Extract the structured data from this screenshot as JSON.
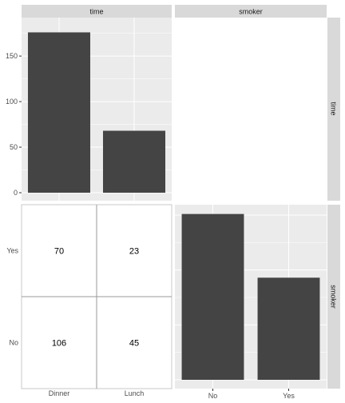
{
  "chart_data": [
    {
      "type": "bar",
      "panel": "time-by-time",
      "facet_col": "time",
      "facet_row": "time",
      "categories": [
        "Dinner",
        "Lunch"
      ],
      "values": [
        176,
        68
      ],
      "ylim": [
        0,
        183
      ],
      "yticks": [
        0,
        50,
        100,
        150
      ]
    },
    {
      "type": "bar",
      "panel": "smoker-by-smoker",
      "facet_col": "smoker",
      "facet_row": "smoker",
      "categories": [
        "No",
        "Yes"
      ],
      "values": [
        151,
        93
      ],
      "ylim": [
        0,
        158
      ]
    },
    {
      "type": "table",
      "panel": "time-by-smoker",
      "columns": [
        "Dinner",
        "Lunch"
      ],
      "rows": [
        "Yes",
        "No"
      ],
      "cells": [
        [
          70,
          23
        ],
        [
          106,
          45
        ]
      ]
    }
  ],
  "strips": {
    "col_time": "time",
    "col_smoker": "smoker",
    "row_time": "time",
    "row_smoker": "smoker"
  },
  "colors": {
    "panel_bg": "#ebebeb",
    "strip_bg": "#d9d9d9",
    "bar": "#444444",
    "grid": "#ffffff"
  }
}
